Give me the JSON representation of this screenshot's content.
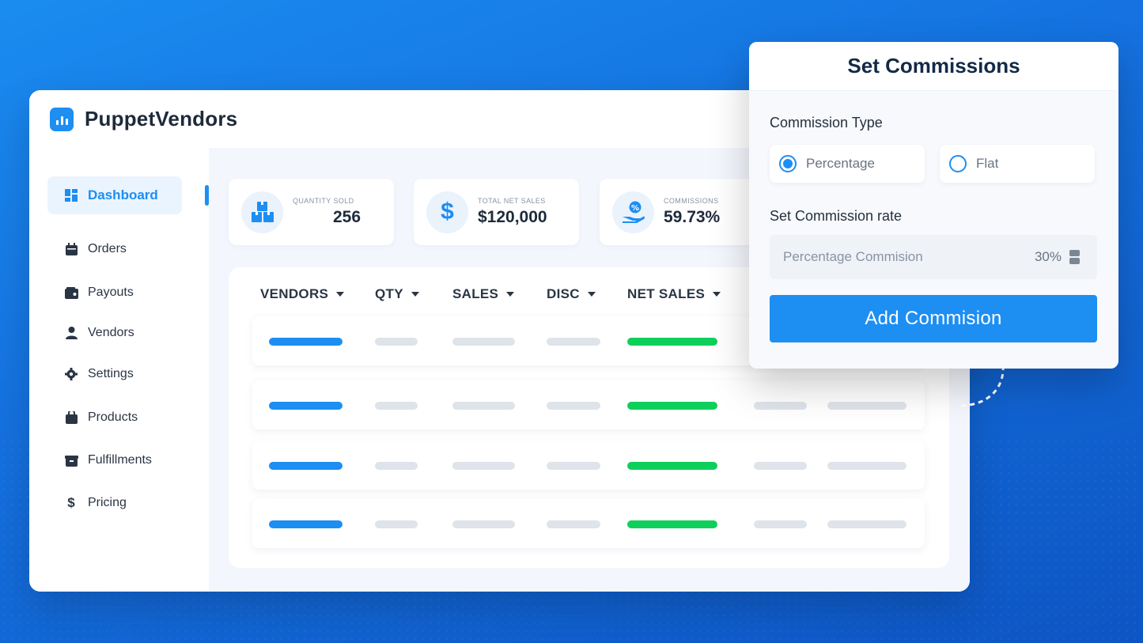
{
  "app": {
    "title": "PuppetVendors",
    "logo_icon": "bar-chart-icon",
    "accent": "#1d8ef2"
  },
  "sidebar": {
    "items": [
      {
        "label": "Dashboard",
        "icon": "dashboard-icon",
        "active": true
      },
      {
        "label": "Orders",
        "icon": "calendar-icon"
      },
      {
        "label": "Payouts",
        "icon": "wallet-icon"
      },
      {
        "label": "Vendors",
        "icon": "user-icon"
      },
      {
        "label": "Settings",
        "icon": "gear-icon"
      },
      {
        "label": "Products",
        "icon": "bag-icon"
      },
      {
        "label": "Fulfillments",
        "icon": "box-icon"
      },
      {
        "label": "Pricing",
        "icon": "dollar-icon"
      }
    ]
  },
  "stats": [
    {
      "label": "QUANTITY SOLD",
      "value": "256",
      "icon": "boxes-icon"
    },
    {
      "label": "TOTAL NET SALES",
      "value": "$120,000",
      "icon": "dollar-icon"
    },
    {
      "label": "COMMISSIONS",
      "value": "59.73%",
      "icon": "hand-percent-icon"
    }
  ],
  "table": {
    "columns": [
      "VENDORS",
      "QTY",
      "SALES",
      "DISC",
      "NET SALES"
    ],
    "row_count": 4
  },
  "modal": {
    "title": "Set Commissions",
    "type_label": "Commission Type",
    "options": [
      {
        "label": "Percentage",
        "selected": true
      },
      {
        "label": "Flat",
        "selected": false
      }
    ],
    "rate_label": "Set Commission rate",
    "rate_placeholder": "Percentage Commision",
    "rate_value": "30%",
    "submit_label": "Add Commision"
  }
}
